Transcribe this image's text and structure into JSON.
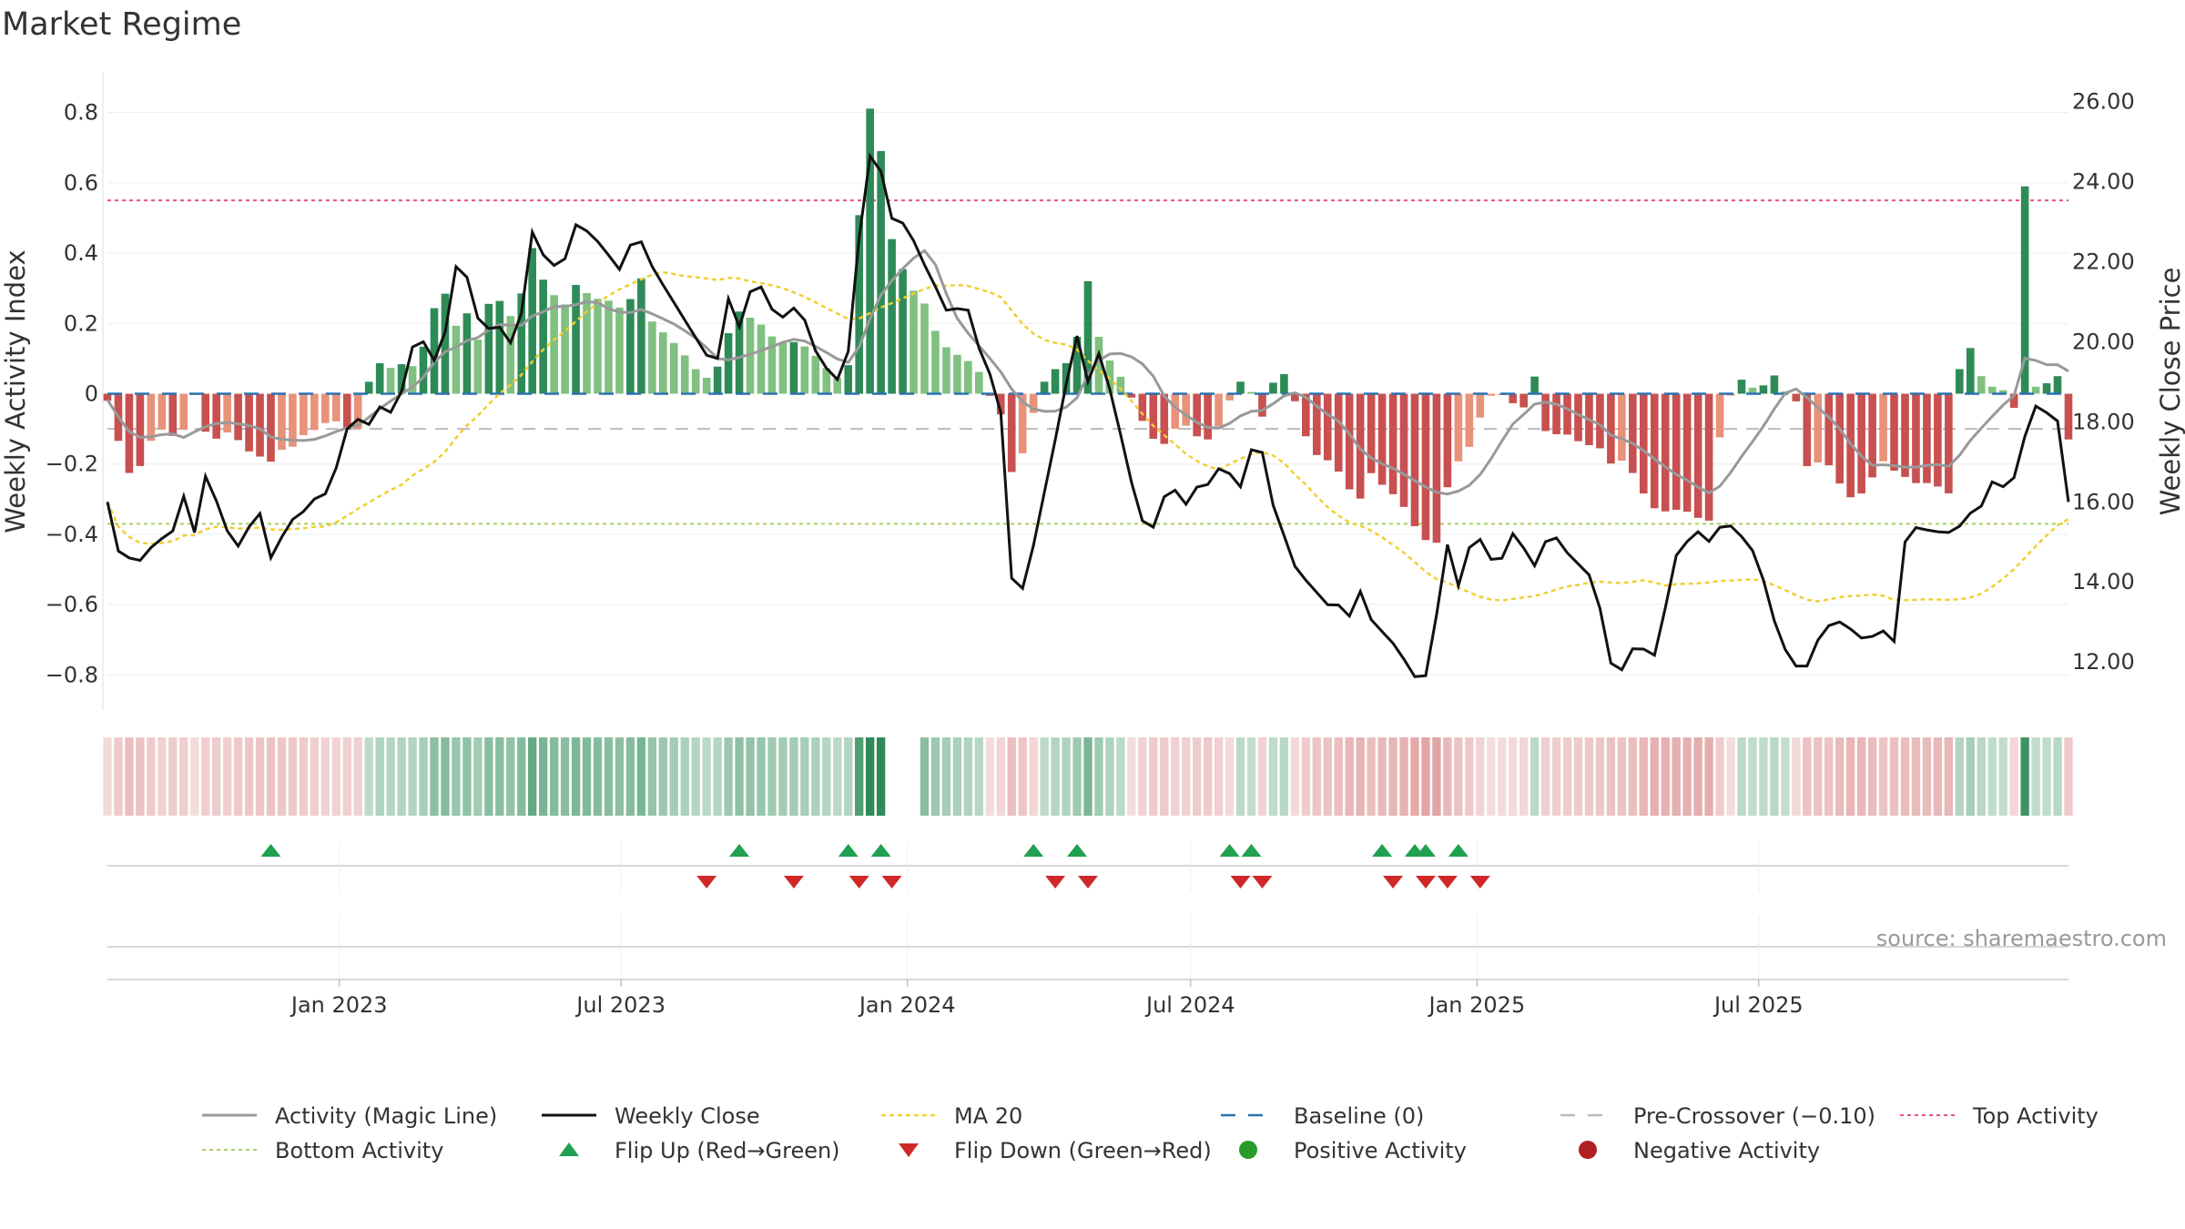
{
  "chart_data": {
    "type": "bar",
    "title": "Market Regime",
    "source": "source: sharemaestro.com",
    "y_left": {
      "label": "Weekly Activity Index",
      "range": [
        -0.9,
        0.9
      ],
      "ticks": [
        -0.8,
        -0.6,
        -0.4,
        -0.2,
        0,
        0.2,
        0.4,
        0.6,
        0.8
      ],
      "tick_labels": [
        "−0.8",
        "−0.6",
        "−0.4",
        "−0.2",
        "0",
        "0.2",
        "0.4",
        "0.6",
        "0.8"
      ]
    },
    "y_right": {
      "label": "Weekly Close Price",
      "range": [
        10.8,
        26.6
      ],
      "ticks": [
        12,
        14,
        16,
        18,
        20,
        22,
        24,
        26
      ],
      "tick_labels": [
        "12.00",
        "14.00",
        "16.00",
        "18.00",
        "20.00",
        "22.00",
        "24.00",
        "26.00"
      ]
    },
    "x_axis": {
      "start": "2022-08-05",
      "weeks": 181,
      "ticks": [
        {
          "date": "2023-01-01",
          "label": "Jan 2023"
        },
        {
          "date": "2023-07-01",
          "label": "Jul 2023"
        },
        {
          "date": "2024-01-01",
          "label": "Jan 2024"
        },
        {
          "date": "2024-07-01",
          "label": "Jul 2024"
        },
        {
          "date": "2025-01-01",
          "label": "Jan 2025"
        },
        {
          "date": "2025-07-01",
          "label": "Jul 2025"
        }
      ]
    },
    "reference_lines": {
      "top_activity": 0.55,
      "bottom_activity": -0.37,
      "pre_crossover": -0.1,
      "baseline": 0
    },
    "colors": {
      "bar_strong_green": "#2e8b57",
      "bar_light_green": "#80c080",
      "bar_strong_red": "#c85050",
      "bar_light_red": "#e8927a",
      "magic_line": "#999999",
      "weekly_close": "#111111",
      "ma20": "#f0d030",
      "baseline": "#2a72b0",
      "pre_crossover": "#bbbbbb",
      "top_activity": "#e8507a",
      "bottom_activity": "#a8d060",
      "flip_up": "#20a050",
      "flip_down": "#d02828",
      "positive": "#2a9a2a",
      "negative": "#b02020"
    },
    "flip_up_weeks": [
      13,
      51,
      60,
      62,
      75,
      78,
      90,
      92,
      103,
      105,
      106,
      109
    ],
    "flip_down_weeks": [
      48,
      55,
      61,
      63,
      76,
      79,
      91,
      93,
      104,
      106,
      108,
      111
    ],
    "legend": [
      {
        "key": "magic",
        "label": "Activity (Magic Line)"
      },
      {
        "key": "close",
        "label": "Weekly Close"
      },
      {
        "key": "ma",
        "label": "MA 20"
      },
      {
        "key": "baseline",
        "label": "Baseline (0)"
      },
      {
        "key": "pre",
        "label": "Pre-Crossover (−0.10)"
      },
      {
        "key": "top",
        "label": "Top Activity"
      },
      {
        "key": "bottom",
        "label": "Bottom Activity"
      },
      {
        "key": "flipup",
        "label": "Flip Up (Red→Green)"
      },
      {
        "key": "flipdown",
        "label": "Flip Down (Green→Red)"
      },
      {
        "key": "pos",
        "label": "Positive Activity"
      },
      {
        "key": "neg",
        "label": "Negative Activity"
      }
    ]
  }
}
